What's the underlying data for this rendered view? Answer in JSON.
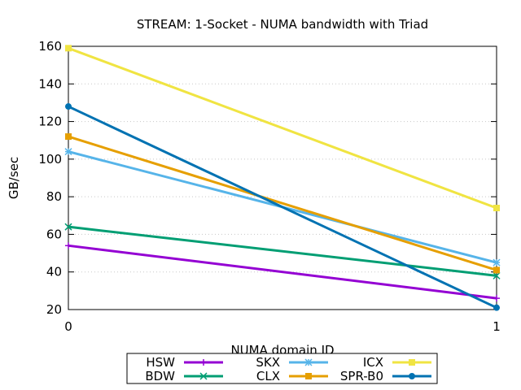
{
  "chart_data": {
    "type": "line",
    "title": "STREAM: 1-Socket - NUMA bandwidth with Triad",
    "xlabel": "NUMA domain ID",
    "ylabel": "GB/sec",
    "x": [
      0,
      1
    ],
    "xticks": [
      "0",
      "1"
    ],
    "xlim": [
      0,
      1
    ],
    "ylim": [
      20,
      160
    ],
    "yticks": [
      20,
      40,
      60,
      80,
      100,
      120,
      140,
      160
    ],
    "grid": true,
    "legend": "bottom-center",
    "series": [
      {
        "name": "HSW",
        "color": "#9400d3",
        "marker": "plus",
        "values": [
          54,
          26
        ]
      },
      {
        "name": "BDW",
        "color": "#009e73",
        "marker": "cross",
        "values": [
          64,
          38
        ]
      },
      {
        "name": "SKX",
        "color": "#56b4e9",
        "marker": "star",
        "values": [
          104,
          45
        ]
      },
      {
        "name": "CLX",
        "color": "#e69f00",
        "marker": "square",
        "values": [
          112,
          41
        ]
      },
      {
        "name": "ICX",
        "color": "#f0e442",
        "marker": "square",
        "values": [
          159,
          74
        ]
      },
      {
        "name": "SPR-B0",
        "color": "#0072b2",
        "marker": "circle",
        "values": [
          128,
          21
        ]
      }
    ]
  }
}
